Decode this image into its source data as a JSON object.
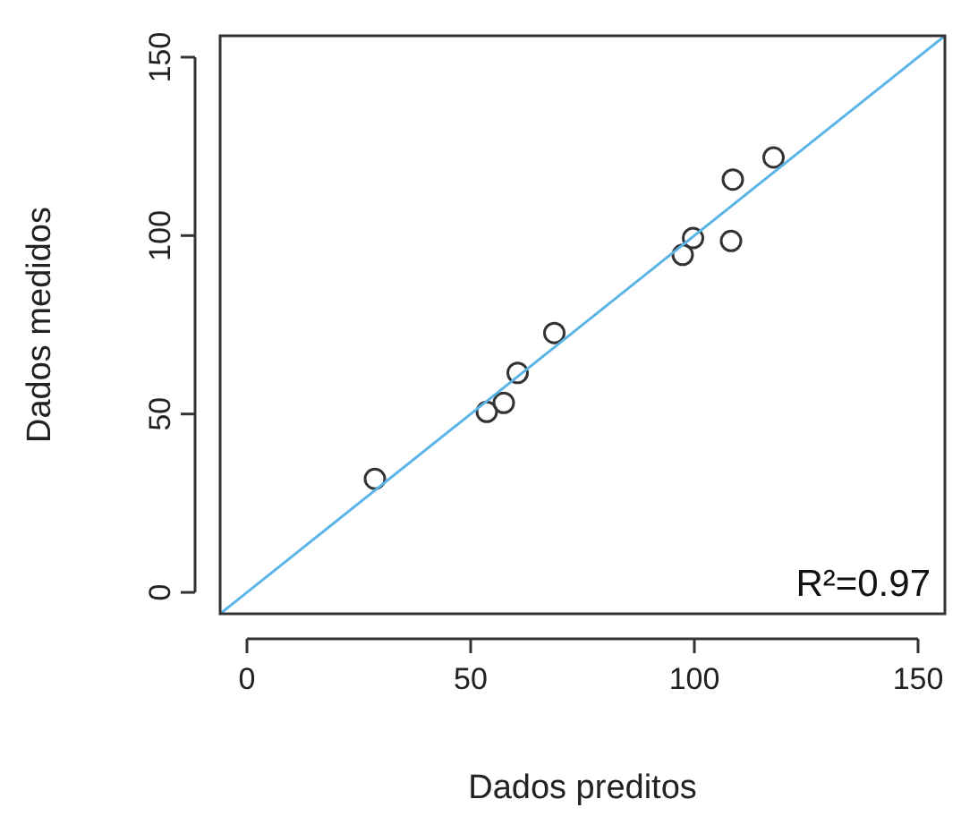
{
  "chart_data": {
    "type": "scatter",
    "xlabel": "Dados preditos",
    "ylabel": "Dados medidos",
    "xlim": [
      -6,
      156
    ],
    "ylim": [
      -6,
      156
    ],
    "xticks": [
      0,
      50,
      100,
      150
    ],
    "yticks": [
      0,
      50,
      100,
      150
    ],
    "grid": false,
    "series": [
      {
        "color": "#333333",
        "marker": "circle",
        "x": [
          28.6,
          53.6,
          57.4,
          60.5,
          68.7,
          97.4,
          99.7,
          108.2,
          108.6,
          117.7
        ],
        "values": [
          31.8,
          50.6,
          53.1,
          61.5,
          72.7,
          94.6,
          99.3,
          98.5,
          115.7,
          121.9
        ]
      },
      {
        "type": "line",
        "color": "#5ab4e8",
        "marker": "none",
        "x": [
          -6,
          156
        ],
        "values": [
          -6,
          156
        ]
      }
    ],
    "annotations": [
      "R²=0.97"
    ]
  }
}
